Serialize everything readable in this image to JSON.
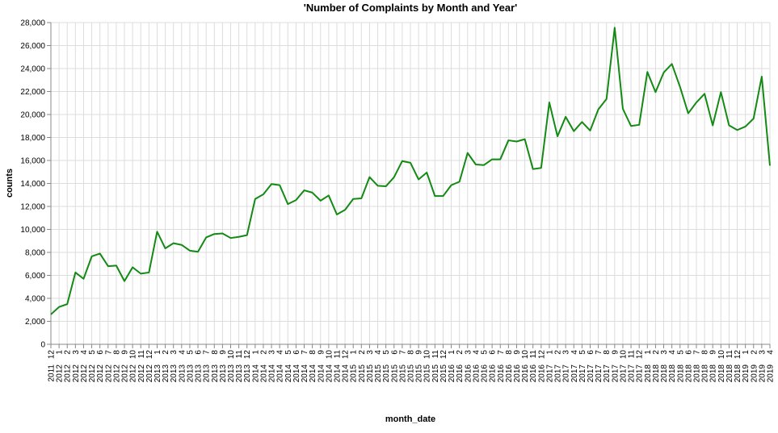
{
  "chart_data": {
    "type": "line",
    "title": "'Number of Complaints by Month and Year'",
    "xlabel": "month_date",
    "ylabel": "counts",
    "ylim": [
      0,
      28000
    ],
    "y_ticks": [
      0,
      2000,
      4000,
      6000,
      8000,
      10000,
      12000,
      14000,
      16000,
      18000,
      20000,
      22000,
      24000,
      26000,
      28000
    ],
    "y_tick_labels": [
      "0",
      "2,000",
      "4,000",
      "6,000",
      "8,000",
      "10,000",
      "12,000",
      "14,000",
      "16,000",
      "18,000",
      "20,000",
      "22,000",
      "24,000",
      "26,000",
      "28,000"
    ],
    "grid": true,
    "line_color": "#138a13",
    "x": [
      {
        "month": "12",
        "year": "2011"
      },
      {
        "month": "1",
        "year": "2012"
      },
      {
        "month": "2",
        "year": "2012"
      },
      {
        "month": "3",
        "year": "2012"
      },
      {
        "month": "4",
        "year": "2012"
      },
      {
        "month": "5",
        "year": "2012"
      },
      {
        "month": "6",
        "year": "2012"
      },
      {
        "month": "7",
        "year": "2012"
      },
      {
        "month": "8",
        "year": "2012"
      },
      {
        "month": "9",
        "year": "2012"
      },
      {
        "month": "10",
        "year": "2012"
      },
      {
        "month": "11",
        "year": "2012"
      },
      {
        "month": "12",
        "year": "2012"
      },
      {
        "month": "1",
        "year": "2013"
      },
      {
        "month": "2",
        "year": "2013"
      },
      {
        "month": "3",
        "year": "2013"
      },
      {
        "month": "4",
        "year": "2013"
      },
      {
        "month": "5",
        "year": "2013"
      },
      {
        "month": "6",
        "year": "2013"
      },
      {
        "month": "7",
        "year": "2013"
      },
      {
        "month": "8",
        "year": "2013"
      },
      {
        "month": "9",
        "year": "2013"
      },
      {
        "month": "10",
        "year": "2013"
      },
      {
        "month": "11",
        "year": "2013"
      },
      {
        "month": "12",
        "year": "2013"
      },
      {
        "month": "1",
        "year": "2014"
      },
      {
        "month": "2",
        "year": "2014"
      },
      {
        "month": "3",
        "year": "2014"
      },
      {
        "month": "4",
        "year": "2014"
      },
      {
        "month": "5",
        "year": "2014"
      },
      {
        "month": "6",
        "year": "2014"
      },
      {
        "month": "7",
        "year": "2014"
      },
      {
        "month": "8",
        "year": "2014"
      },
      {
        "month": "9",
        "year": "2014"
      },
      {
        "month": "10",
        "year": "2014"
      },
      {
        "month": "11",
        "year": "2014"
      },
      {
        "month": "12",
        "year": "2014"
      },
      {
        "month": "1",
        "year": "2015"
      },
      {
        "month": "2",
        "year": "2015"
      },
      {
        "month": "3",
        "year": "2015"
      },
      {
        "month": "4",
        "year": "2015"
      },
      {
        "month": "5",
        "year": "2015"
      },
      {
        "month": "6",
        "year": "2015"
      },
      {
        "month": "7",
        "year": "2015"
      },
      {
        "month": "8",
        "year": "2015"
      },
      {
        "month": "9",
        "year": "2015"
      },
      {
        "month": "10",
        "year": "2015"
      },
      {
        "month": "11",
        "year": "2015"
      },
      {
        "month": "12",
        "year": "2015"
      },
      {
        "month": "1",
        "year": "2016"
      },
      {
        "month": "2",
        "year": "2016"
      },
      {
        "month": "3",
        "year": "2016"
      },
      {
        "month": "4",
        "year": "2016"
      },
      {
        "month": "5",
        "year": "2016"
      },
      {
        "month": "6",
        "year": "2016"
      },
      {
        "month": "7",
        "year": "2016"
      },
      {
        "month": "8",
        "year": "2016"
      },
      {
        "month": "9",
        "year": "2016"
      },
      {
        "month": "10",
        "year": "2016"
      },
      {
        "month": "11",
        "year": "2016"
      },
      {
        "month": "12",
        "year": "2016"
      },
      {
        "month": "1",
        "year": "2017"
      },
      {
        "month": "2",
        "year": "2017"
      },
      {
        "month": "3",
        "year": "2017"
      },
      {
        "month": "4",
        "year": "2017"
      },
      {
        "month": "5",
        "year": "2017"
      },
      {
        "month": "6",
        "year": "2017"
      },
      {
        "month": "7",
        "year": "2017"
      },
      {
        "month": "8",
        "year": "2017"
      },
      {
        "month": "9",
        "year": "2017"
      },
      {
        "month": "10",
        "year": "2017"
      },
      {
        "month": "11",
        "year": "2017"
      },
      {
        "month": "12",
        "year": "2017"
      },
      {
        "month": "1",
        "year": "2018"
      },
      {
        "month": "2",
        "year": "2018"
      },
      {
        "month": "3",
        "year": "2018"
      },
      {
        "month": "4",
        "year": "2018"
      },
      {
        "month": "5",
        "year": "2018"
      },
      {
        "month": "6",
        "year": "2018"
      },
      {
        "month": "7",
        "year": "2018"
      },
      {
        "month": "8",
        "year": "2018"
      },
      {
        "month": "9",
        "year": "2018"
      },
      {
        "month": "10",
        "year": "2018"
      },
      {
        "month": "11",
        "year": "2018"
      },
      {
        "month": "12",
        "year": "2018"
      },
      {
        "month": "1",
        "year": "2019"
      },
      {
        "month": "2",
        "year": "2019"
      },
      {
        "month": "3",
        "year": "2019"
      },
      {
        "month": "4",
        "year": "2019"
      }
    ],
    "series": [
      {
        "values": [
          2600,
          3250,
          3500,
          6250,
          5700,
          7650,
          7900,
          6800,
          6850,
          5500,
          6700,
          6150,
          6250,
          9800,
          8350,
          8800,
          8650,
          8150,
          8050,
          9300,
          9600,
          9650,
          9250,
          9350,
          9500,
          12650,
          13050,
          13950,
          13850,
          12200,
          12550,
          13400,
          13200,
          12500,
          12950,
          11300,
          11700,
          12650,
          12700,
          14550,
          13800,
          13750,
          14550,
          15950,
          15800,
          14350,
          14950,
          12900,
          12900,
          13850,
          14150,
          16650,
          15650,
          15600,
          16100,
          16100,
          17750,
          17650,
          17850,
          15250,
          15350,
          21050,
          18100,
          19800,
          18550,
          19350,
          18600,
          20450,
          21350,
          27550,
          20500,
          19000,
          19100,
          23700,
          21950,
          23650,
          24400,
          22400,
          20100,
          21050,
          21800,
          19050,
          21950,
          19050,
          18650,
          18950,
          19650,
          23300,
          15550
        ]
      }
    ]
  }
}
